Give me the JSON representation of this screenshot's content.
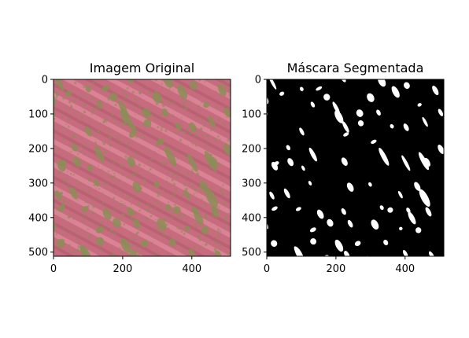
{
  "panels": [
    {
      "title": "Imagem Original",
      "x_ticks": [
        "0",
        "200",
        "400"
      ],
      "y_ticks": [
        "0",
        "100",
        "200",
        "300",
        "400",
        "500"
      ],
      "background_color": "#c66a7c",
      "texture_color": "#8a8e56"
    },
    {
      "title": "Máscara Segmentada",
      "x_ticks": [
        "0",
        "200",
        "400"
      ],
      "y_ticks": [
        "0",
        "100",
        "200",
        "300",
        "400",
        "500"
      ],
      "background_color": "#000000",
      "blob_color": "#ffffff"
    }
  ],
  "axis_range": {
    "x": [
      0,
      512
    ],
    "y": [
      0,
      512
    ]
  }
}
